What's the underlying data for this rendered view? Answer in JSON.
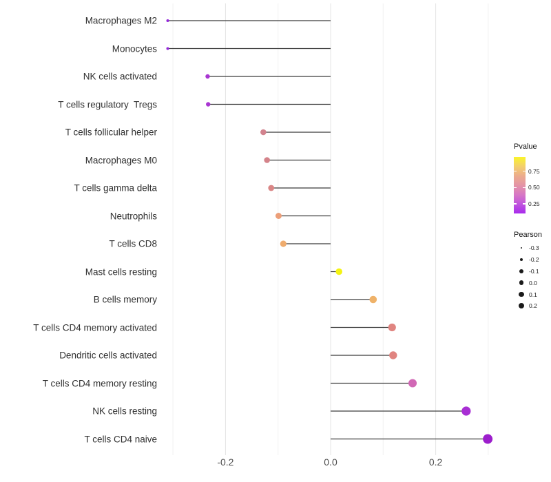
{
  "chart_data": {
    "type": "scatter",
    "style": "lollipop",
    "orientation": "horizontal",
    "title": "",
    "xlabel": "",
    "ylabel": "",
    "x_ticks": [
      "-0.2",
      "0.0",
      "0.2"
    ],
    "x_tick_values": [
      -0.2,
      0.0,
      0.2
    ],
    "x_range": [
      -0.345,
      0.33
    ],
    "baseline": 0.0,
    "grid": {
      "major_x": [
        -0.2,
        0.0,
        0.2
      ],
      "minor_x": [
        -0.3,
        -0.1,
        0.1,
        0.3
      ]
    },
    "points": [
      {
        "label": "Macrophages M2",
        "pearson": -0.31,
        "color": "#9428DB",
        "radius": 2.0
      },
      {
        "label": "Monocytes",
        "pearson": -0.31,
        "color": "#9428DB",
        "radius": 2.0
      },
      {
        "label": "NK cells activated",
        "pearson": -0.234,
        "color": "#A936D2",
        "radius": 3.2
      },
      {
        "label": "T cells regulatory  Tregs",
        "pearson": -0.233,
        "color": "#A936D2",
        "radius": 3.2
      },
      {
        "label": "T cells follicular helper",
        "pearson": -0.128,
        "color": "#D2838E",
        "radius": 4.3
      },
      {
        "label": "Macrophages M0",
        "pearson": -0.121,
        "color": "#D4838A",
        "radius": 4.3
      },
      {
        "label": "T cells gamma delta",
        "pearson": -0.113,
        "color": "#DA8686",
        "radius": 4.4
      },
      {
        "label": "Neutrophils",
        "pearson": -0.099,
        "color": "#EC9F79",
        "radius": 4.5
      },
      {
        "label": "T cells CD8",
        "pearson": -0.09,
        "color": "#EFAC6E",
        "radius": 4.6
      },
      {
        "label": "Mast cells resting",
        "pearson": 0.016,
        "color": "#F4F313",
        "radius": 4.8
      },
      {
        "label": "B cells memory",
        "pearson": 0.081,
        "color": "#EFB269",
        "radius": 5.3
      },
      {
        "label": "T cells CD4 memory activated",
        "pearson": 0.117,
        "color": "#E08581",
        "radius": 5.6
      },
      {
        "label": "Dendritic cells activated",
        "pearson": 0.119,
        "color": "#E08480",
        "radius": 5.7
      },
      {
        "label": "T cells CD4 memory resting",
        "pearson": 0.156,
        "color": "#D168B5",
        "radius": 6.0
      },
      {
        "label": "NK cells resting",
        "pearson": 0.258,
        "color": "#A82ED4",
        "radius": 6.6
      },
      {
        "label": "T cells CD4 naive",
        "pearson": 0.299,
        "color": "#9C1ECC",
        "radius": 7.0
      }
    ],
    "legend_position": "right"
  },
  "legend": {
    "pvalue": {
      "title": "Pvalue",
      "ticks": [
        "0.75",
        "0.50",
        "0.25"
      ],
      "gradient_stops_top_to_bottom": [
        "#FAF42B",
        "#F3CF6C",
        "#ECAC8C",
        "#E494A6",
        "#D778C4",
        "#C054DE",
        "#A82BEC"
      ]
    },
    "pearson": {
      "title": "Pearson",
      "dot_color": "#1a1a1a",
      "sizes": [
        {
          "label": "-0.3",
          "radius": 1.4
        },
        {
          "label": "-0.2",
          "radius": 2.4
        },
        {
          "label": "-0.1",
          "radius": 2.9
        },
        {
          "label": "0.0",
          "radius": 3.3
        },
        {
          "label": "0.1",
          "radius": 3.7
        },
        {
          "label": "0.2",
          "radius": 4.1
        }
      ]
    }
  },
  "style_colors": {
    "stem": "#3b3b3b",
    "grid_major": "#E4E4E4",
    "grid_minor": "#F1F1F1",
    "axis_text": "#4d4d4d",
    "category_text": "#303030"
  }
}
